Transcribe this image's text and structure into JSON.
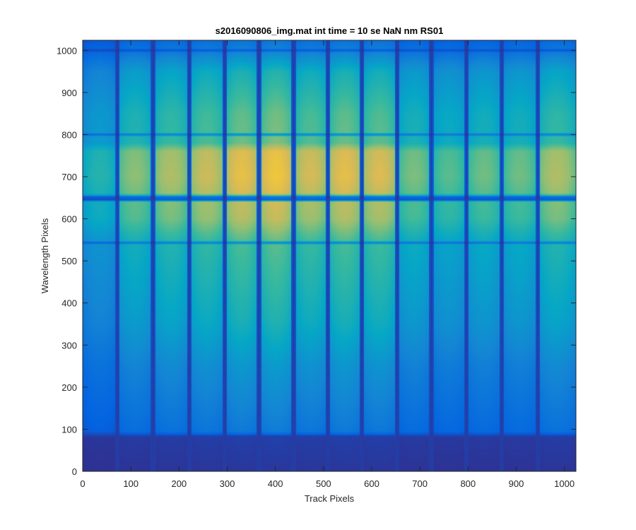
{
  "chart_data": {
    "type": "heatmap",
    "title": "s2016090806_img.mat int time = 10 se  NaN nm RS01",
    "xlabel": "Track Pixels",
    "ylabel": "Wavelength Pixels",
    "xlim": [
      0,
      1024
    ],
    "ylim": [
      0,
      1024
    ],
    "xticks": [
      0,
      100,
      200,
      300,
      400,
      500,
      600,
      700,
      800,
      900,
      1000
    ],
    "yticks": [
      0,
      100,
      200,
      300,
      400,
      500,
      600,
      700,
      800,
      900,
      1000
    ],
    "colormap": "parula",
    "colormap_stops": [
      "#352a87",
      "#0363e1",
      "#1485d4",
      "#06a7c6",
      "#38b99e",
      "#92bf73",
      "#d9ba56",
      "#fcce2e",
      "#f9fb0e"
    ],
    "grid": false,
    "column_profile": {
      "gaps_x": [
        72,
        146,
        221,
        295,
        366,
        438,
        509,
        580,
        653,
        724,
        797,
        870,
        945
      ],
      "gap_width": 9,
      "track_brightness": [
        0.55,
        0.75,
        0.82,
        0.88,
        0.96,
        1.0,
        0.9,
        0.95,
        0.92,
        0.72,
        0.66,
        0.7,
        0.7,
        0.82
      ]
    },
    "row_profile": {
      "y": [
        0,
        80,
        95,
        150,
        250,
        350,
        450,
        540,
        560,
        600,
        640,
        645,
        660,
        700,
        760,
        780,
        850,
        950,
        1000,
        1024
      ],
      "intensity": [
        0.03,
        0.05,
        0.22,
        0.26,
        0.33,
        0.44,
        0.5,
        0.55,
        0.6,
        0.72,
        0.74,
        0.1,
        0.78,
        0.83,
        0.8,
        0.6,
        0.58,
        0.45,
        0.25,
        0.2
      ]
    },
    "dark_lines_y": [
      543,
      651,
      800,
      1000
    ]
  }
}
